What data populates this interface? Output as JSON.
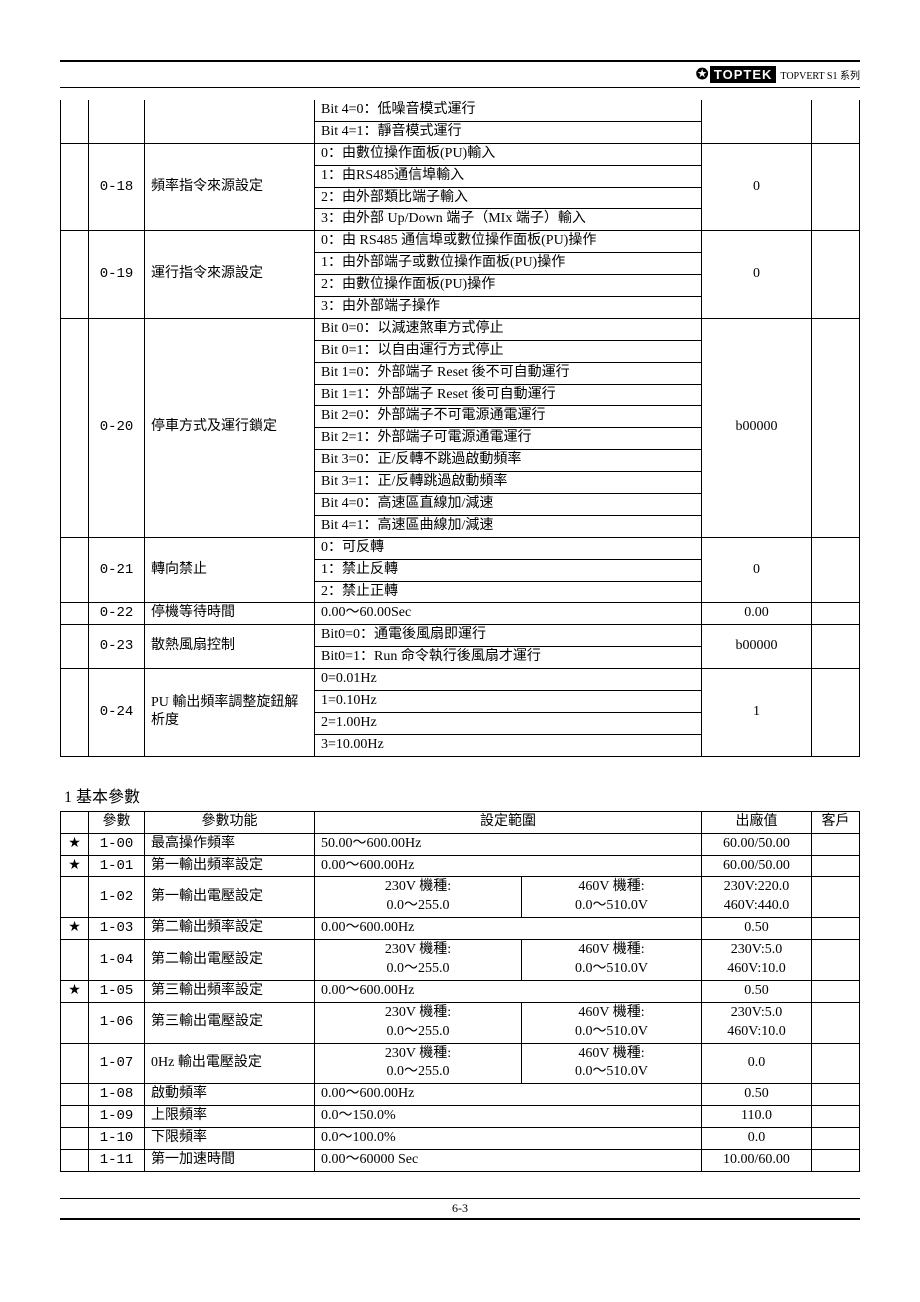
{
  "header": {
    "brand_symbol": "✪",
    "brand_name": "TOPTEK",
    "series": "TOPVERT S1 系列"
  },
  "footer": {
    "page_no": "6-3"
  },
  "table1": {
    "pre_rows": [
      "Bit 4=0：低噪音模式運行",
      "Bit 4=1：靜音模式運行"
    ],
    "rows": [
      {
        "param": "0-18",
        "name": "頻率指令來源設定",
        "options": [
          "0：由數位操作面板(PU)輸入",
          "1：由RS485通信埠輸入",
          "2：由外部類比端子輸入",
          "3：由外部 Up/Down 端子（MIx 端子）輸入"
        ],
        "default": "0"
      },
      {
        "param": "0-19",
        "name": "運行指令來源設定",
        "options": [
          "0：由 RS485 通信埠或數位操作面板(PU)操作",
          "1：由外部端子或數位操作面板(PU)操作",
          "2：由數位操作面板(PU)操作",
          "3：由外部端子操作"
        ],
        "default": "0"
      },
      {
        "param": "0-20",
        "name": "停車方式及運行鎖定",
        "options": [
          "Bit 0=0：以減速煞車方式停止",
          "Bit 0=1：以自由運行方式停止",
          "Bit 1=0：外部端子 Reset 後不可自動運行",
          "Bit 1=1：外部端子 Reset 後可自動運行",
          "Bit 2=0：外部端子不可電源通電運行",
          "Bit 2=1：外部端子可電源通電運行",
          "Bit 3=0：正/反轉不跳過啟動頻率",
          "Bit 3=1：正/反轉跳過啟動頻率",
          "Bit 4=0：高速區直線加/減速",
          "Bit 4=1：高速區曲線加/減速"
        ],
        "default": "b00000"
      },
      {
        "param": "0-21",
        "name": "轉向禁止",
        "options": [
          "0：可反轉",
          "1：禁止反轉",
          "2：禁止正轉"
        ],
        "default": "0"
      },
      {
        "param": "0-22",
        "name": "停機等待時間",
        "options": [
          "0.00～60.00Sec"
        ],
        "default": "0.00"
      },
      {
        "param": "0-23",
        "name": "散熱風扇控制",
        "options": [
          "Bit0=0：通電後風扇即運行",
          "Bit0=1：Run 命令執行後風扇才運行"
        ],
        "default": "b00000"
      },
      {
        "param": "0-24",
        "name": "PU 輸出頻率調整旋鈕解析度",
        "options": [
          "0=0.01Hz",
          "1=0.10Hz",
          "2=1.00Hz",
          "3=10.00Hz"
        ],
        "default": "1"
      }
    ]
  },
  "section2_title": "1 基本參數",
  "table2": {
    "headers": {
      "param": "參數",
      "name": "參數功能",
      "range": "設定範圍",
      "default": "出廠值",
      "customer": "客戶"
    },
    "rows": [
      {
        "star": "★",
        "param": "1-00",
        "name": "最高操作頻率",
        "range": "50.00～600.00Hz",
        "default": "60.00/50.00"
      },
      {
        "star": "★",
        "param": "1-01",
        "name": "第一輸出頻率設定",
        "range": "0.00～600.00Hz",
        "default": "60.00/50.00"
      },
      {
        "star": "",
        "param": "1-02",
        "name": "第一輸出電壓設定",
        "range_split": {
          "l": "230V 機種:\n0.0～255.0",
          "r": "460V 機種:\n0.0～510.0V"
        },
        "default": "230V:220.0\n460V:440.0"
      },
      {
        "star": "★",
        "param": "1-03",
        "name": "第二輸出頻率設定",
        "range": "0.00～600.00Hz",
        "default": "0.50"
      },
      {
        "star": "",
        "param": "1-04",
        "name": "第二輸出電壓設定",
        "range_split": {
          "l": "230V 機種:\n0.0～255.0",
          "r": "460V 機種:\n0.0～510.0V"
        },
        "default": "230V:5.0\n460V:10.0"
      },
      {
        "star": "★",
        "param": "1-05",
        "name": "第三輸出頻率設定",
        "range": "0.00～600.00Hz",
        "default": "0.50"
      },
      {
        "star": "",
        "param": "1-06",
        "name": "第三輸出電壓設定",
        "range_split": {
          "l": "230V 機種:\n0.0～255.0",
          "r": "460V 機種:\n0.0～510.0V"
        },
        "default": "230V:5.0\n460V:10.0"
      },
      {
        "star": "",
        "param": "1-07",
        "name": "0Hz 輸出電壓設定",
        "range_split": {
          "l": "230V 機種:\n0.0～255.0",
          "r": "460V 機種:\n0.0～510.0V"
        },
        "default": "0.0"
      },
      {
        "star": "",
        "param": "1-08",
        "name": "啟動頻率",
        "range": "0.00～600.00Hz",
        "default": "0.50"
      },
      {
        "star": "",
        "param": "1-09",
        "name": "上限頻率",
        "range": "0.0～150.0%",
        "default": "110.0"
      },
      {
        "star": "",
        "param": "1-10",
        "name": "下限頻率",
        "range": "0.0～100.0%",
        "default": "0.0"
      },
      {
        "star": "",
        "param": "1-11",
        "name": "第一加速時間",
        "range": "0.00～60000 Sec",
        "default": "10.00/60.00"
      }
    ]
  }
}
